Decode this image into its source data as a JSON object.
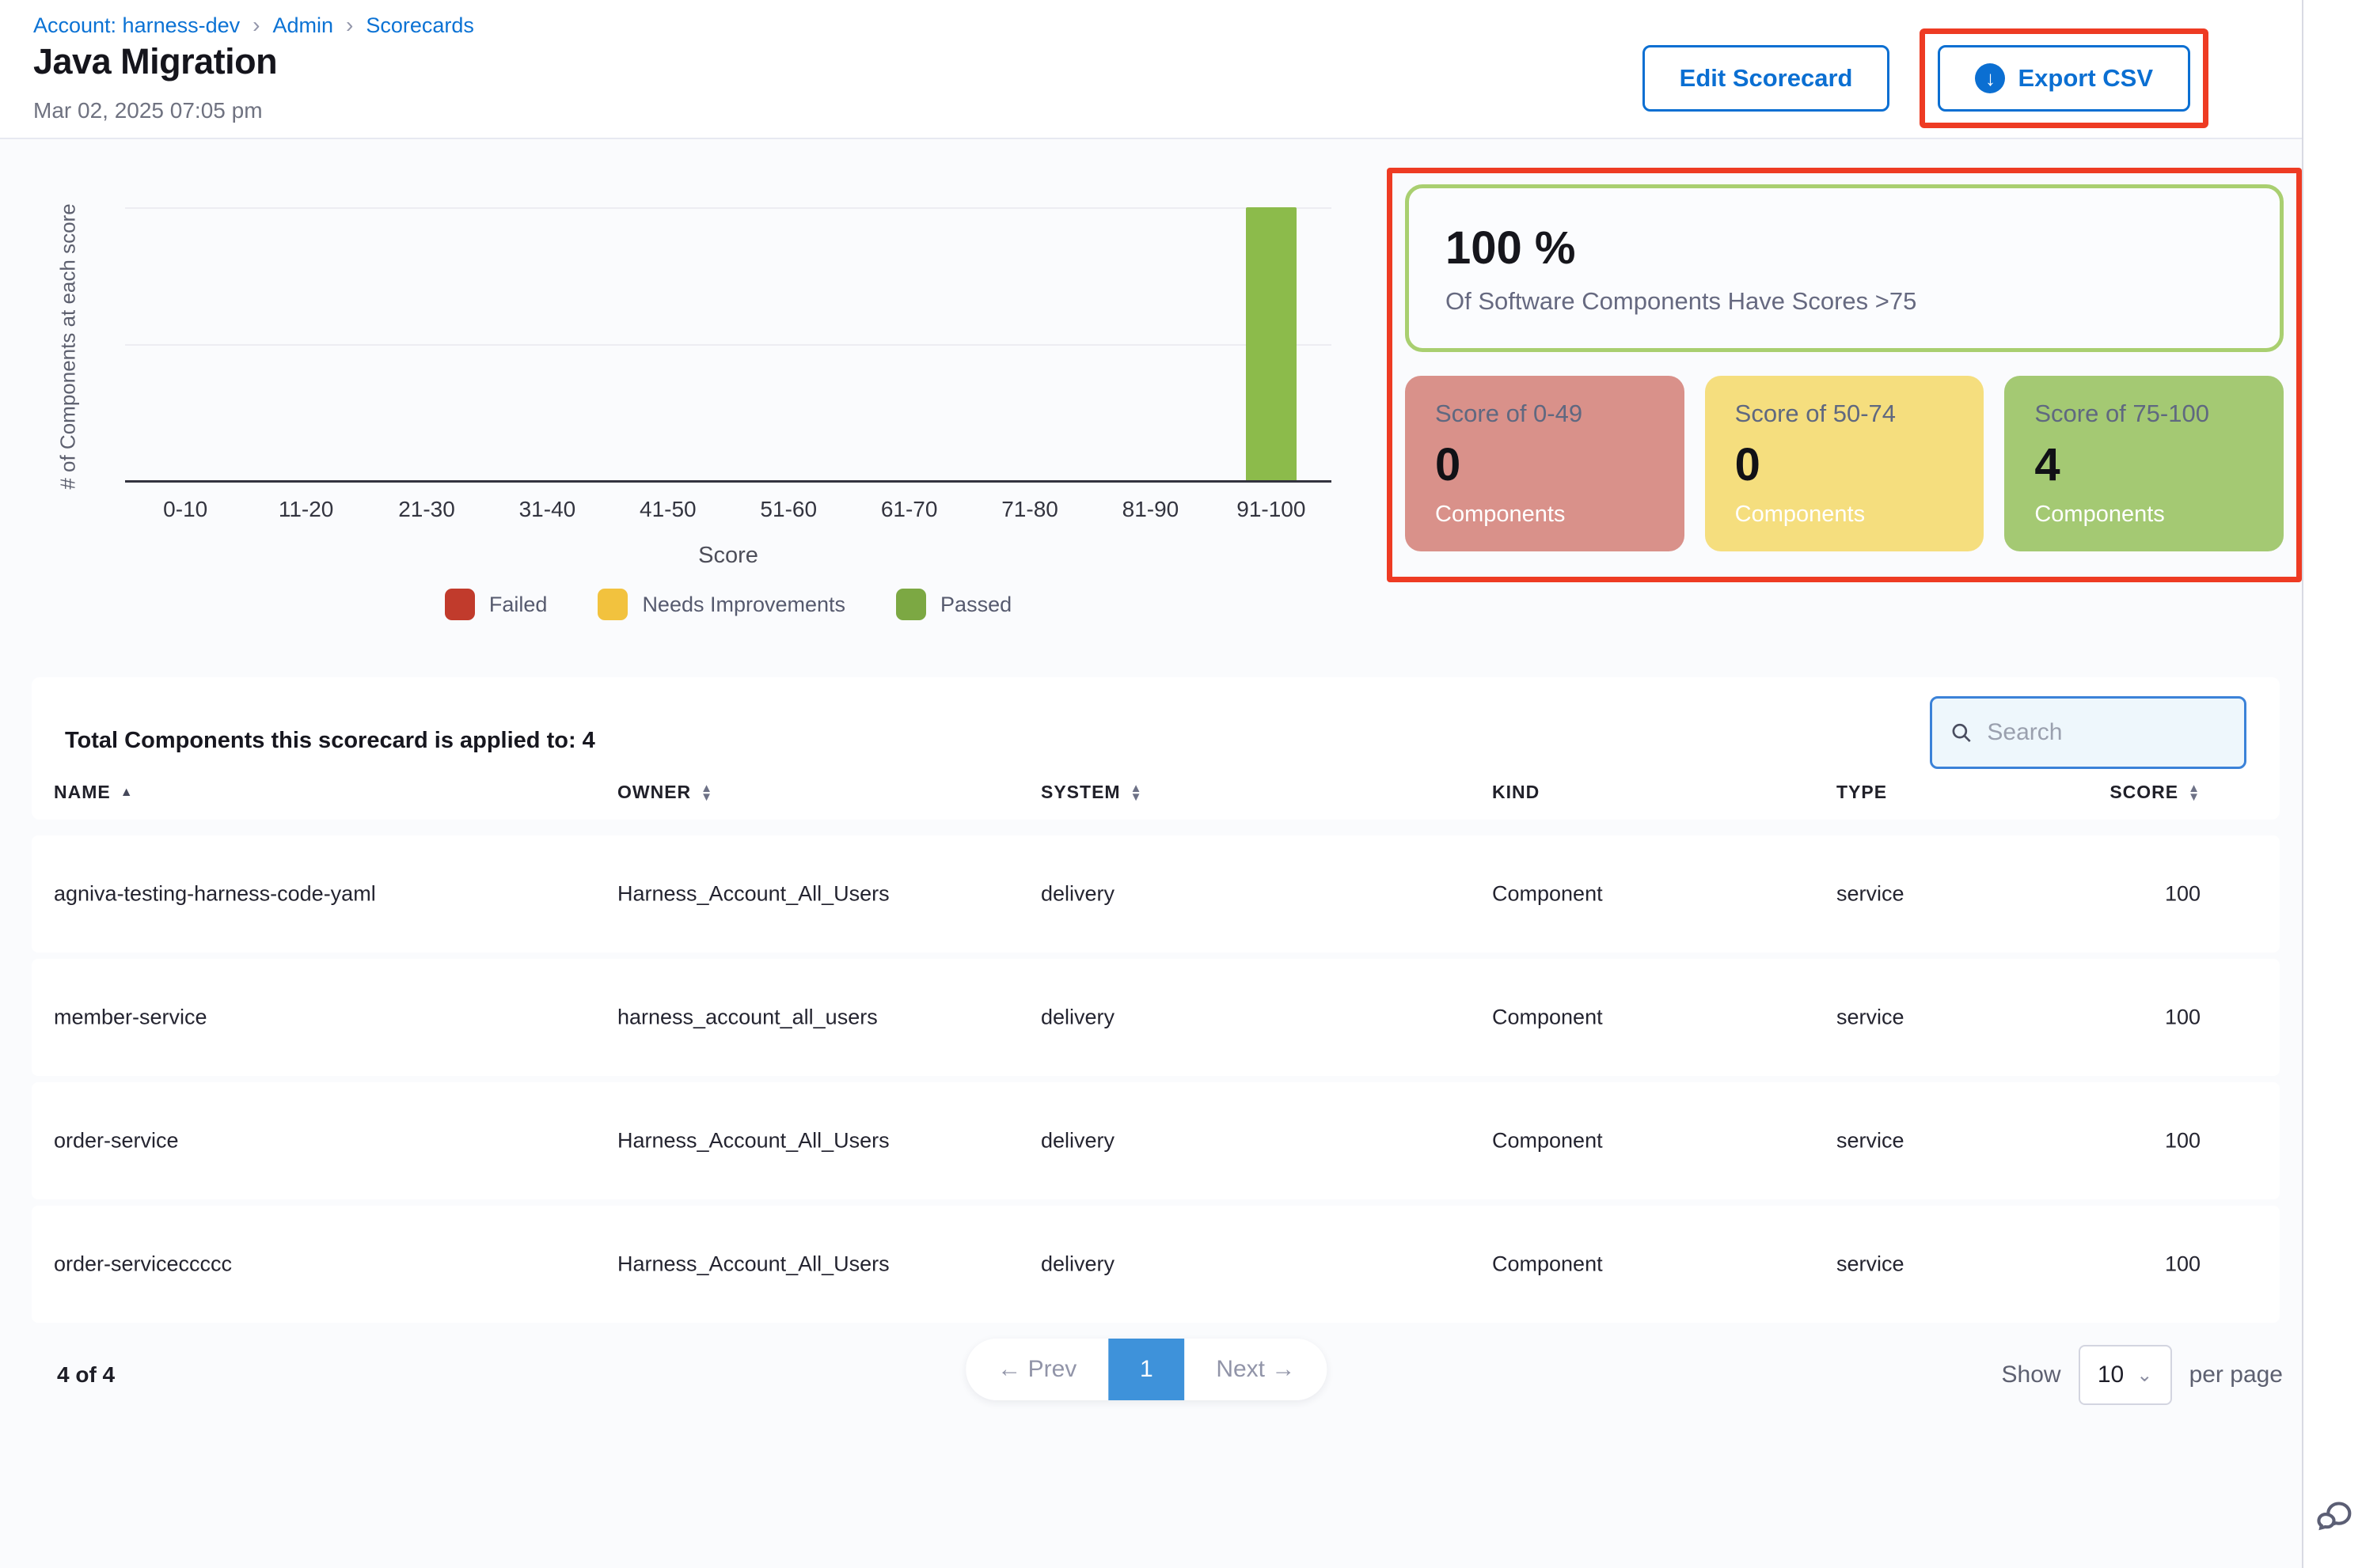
{
  "colors": {
    "accent_blue": "#0b6fd2",
    "annotation_red": "#ee3b23",
    "pager_active_blue": "#3e92da",
    "summary_border_green": "#a9cf70",
    "card_red_bg": "#d9918a",
    "card_yellow_bg": "#f5de7e",
    "card_green_bg": "#a4c973",
    "bar_green": "#8cbb4b"
  },
  "breadcrumb": {
    "items": [
      {
        "label": "Account: harness-dev"
      },
      {
        "label": "Admin"
      },
      {
        "label": "Scorecards"
      }
    ],
    "separator": "›"
  },
  "header": {
    "title": "Java Migration",
    "timestamp": "Mar 02, 2025 07:05 pm",
    "edit_button": "Edit Scorecard",
    "export_button": "Export CSV"
  },
  "chart_data": {
    "type": "bar",
    "title": "",
    "categories": [
      "0-10",
      "11-20",
      "21-30",
      "31-40",
      "41-50",
      "51-60",
      "61-70",
      "71-80",
      "81-90",
      "91-100"
    ],
    "values": [
      0,
      0,
      0,
      0,
      0,
      0,
      0,
      0,
      0,
      4
    ],
    "bar_colors": [
      "#c13b2c",
      "#c13b2c",
      "#c13b2c",
      "#c13b2c",
      "#c13b2c",
      "#f2c23e",
      "#f2c23e",
      "#8cbb4b",
      "#8cbb4b",
      "#8cbb4b"
    ],
    "xlabel": "Score",
    "ylabel": "# of Components at each score",
    "yticks": [
      0,
      2,
      4
    ],
    "ylim": [
      0,
      4
    ],
    "grid": "horizontal",
    "legend_position": "bottom",
    "legend": [
      {
        "label": "Failed",
        "color": "#c13b2c"
      },
      {
        "label": "Needs Improvements",
        "color": "#f2c23e"
      },
      {
        "label": "Passed",
        "color": "#7ca843"
      }
    ]
  },
  "summary": {
    "headline_value": "100 %",
    "headline_caption": "Of Software Components Have Scores >75",
    "cards": [
      {
        "label": "Score of 0-49",
        "value": "0",
        "caption": "Components",
        "bg": "#d9918a"
      },
      {
        "label": "Score of 50-74",
        "value": "0",
        "caption": "Components",
        "bg": "#f5de7e"
      },
      {
        "label": "Score of 75-100",
        "value": "4",
        "caption": "Components",
        "bg": "#a4c973"
      }
    ]
  },
  "components_table": {
    "title": "Total Components this scorecard is applied to: 4",
    "search_placeholder": "Search",
    "columns": [
      {
        "label": "NAME",
        "sort": "asc"
      },
      {
        "label": "OWNER",
        "sort": "both"
      },
      {
        "label": "SYSTEM",
        "sort": "both"
      },
      {
        "label": "KIND",
        "sort": "none"
      },
      {
        "label": "TYPE",
        "sort": "none"
      },
      {
        "label": "SCORE",
        "sort": "both"
      }
    ],
    "rows": [
      {
        "name": "agniva-testing-harness-code-yaml",
        "owner": "Harness_Account_All_Users",
        "system": "delivery",
        "kind": "Component",
        "type": "service",
        "score": "100"
      },
      {
        "name": "member-service",
        "owner": "harness_account_all_users",
        "system": "delivery",
        "kind": "Component",
        "type": "service",
        "score": "100"
      },
      {
        "name": "order-service",
        "owner": "Harness_Account_All_Users",
        "system": "delivery",
        "kind": "Component",
        "type": "service",
        "score": "100"
      },
      {
        "name": "order-serviceccccc",
        "owner": "Harness_Account_All_Users",
        "system": "delivery",
        "kind": "Component",
        "type": "service",
        "score": "100"
      }
    ]
  },
  "pagination": {
    "range_label": "4 of 4",
    "prev_label": "← Prev",
    "pages": [
      "1"
    ],
    "active_page": "1",
    "next_label": "Next →",
    "show_label": "Show",
    "page_size": "10",
    "per_page_label": "per page"
  }
}
